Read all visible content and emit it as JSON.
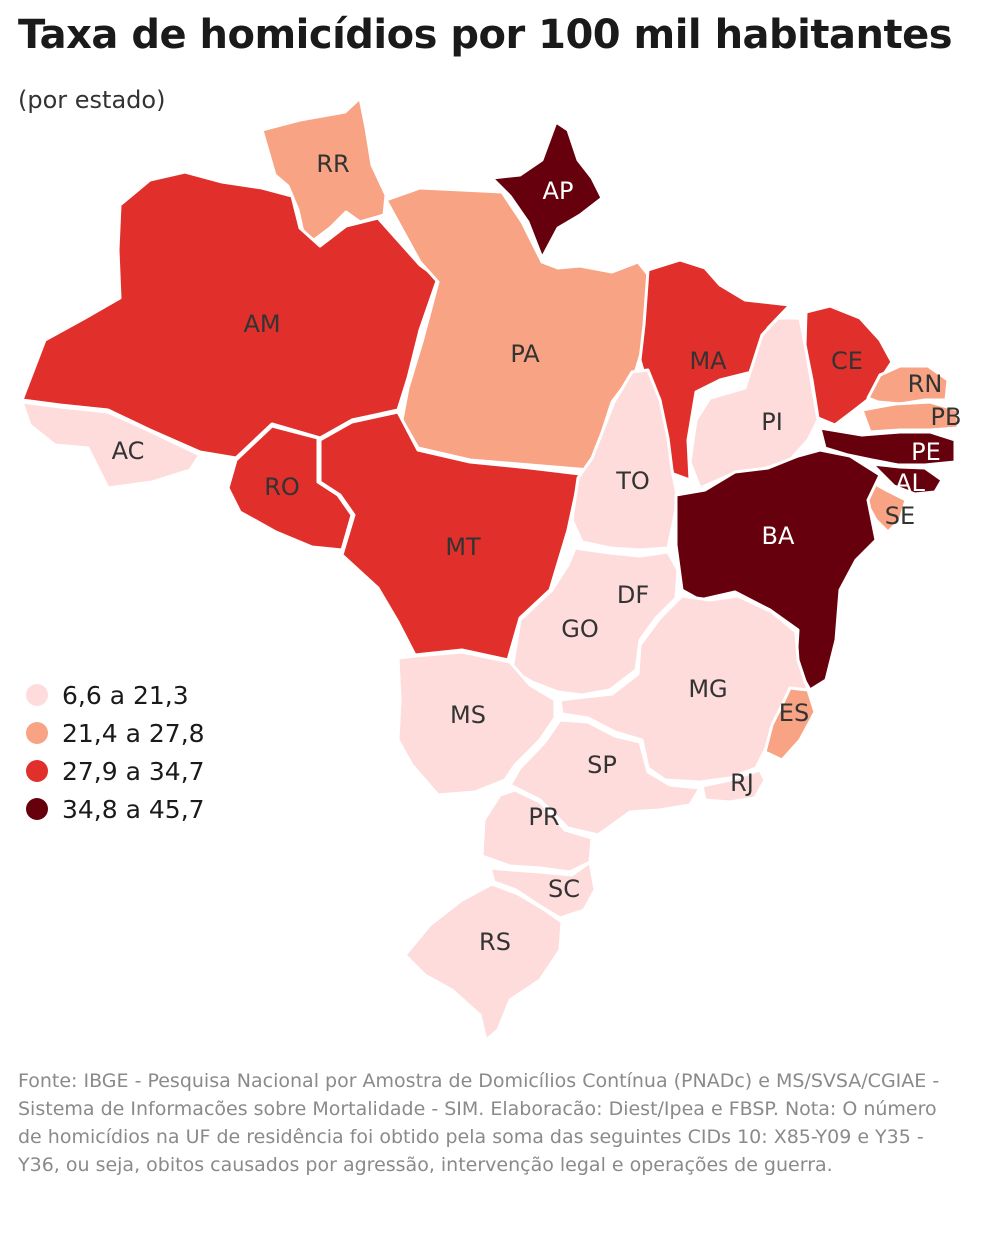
{
  "title": "Taxa de homicídios por 100 mil habitantes",
  "subtitle": "(por estado)",
  "legend": [
    {
      "label": "6,6 a 21,3",
      "color": "#fddcdb"
    },
    {
      "label": "21,4 a 27,8",
      "color": "#f7a384"
    },
    {
      "label": "27,9 a 34,7",
      "color": "#e1302b"
    },
    {
      "label": "34,8 a 45,7",
      "color": "#67000d"
    }
  ],
  "states": [
    {
      "code": "RR",
      "class": 1
    },
    {
      "code": "AP",
      "class": 3
    },
    {
      "code": "AM",
      "class": 2
    },
    {
      "code": "PA",
      "class": 1
    },
    {
      "code": "AC",
      "class": 0
    },
    {
      "code": "RO",
      "class": 2
    },
    {
      "code": "MT",
      "class": 2
    },
    {
      "code": "MA",
      "class": 2
    },
    {
      "code": "CE",
      "class": 2
    },
    {
      "code": "RN",
      "class": 1
    },
    {
      "code": "PB",
      "class": 1
    },
    {
      "code": "PE",
      "class": 3
    },
    {
      "code": "AL",
      "class": 3
    },
    {
      "code": "SE",
      "class": 1
    },
    {
      "code": "PI",
      "class": 0
    },
    {
      "code": "TO",
      "class": 0
    },
    {
      "code": "BA",
      "class": 3
    },
    {
      "code": "DF",
      "class": 0
    },
    {
      "code": "GO",
      "class": 0
    },
    {
      "code": "MG",
      "class": 0
    },
    {
      "code": "ES",
      "class": 1
    },
    {
      "code": "MS",
      "class": 0
    },
    {
      "code": "SP",
      "class": 0
    },
    {
      "code": "RJ",
      "class": 0
    },
    {
      "code": "PR",
      "class": 0
    },
    {
      "code": "SC",
      "class": 0
    },
    {
      "code": "RS",
      "class": 0
    }
  ],
  "source": "Fonte: IBGE - Pesquisa Nacional por Amostra de Domicílios Contínua (PNADc) e MS/SVSA/CGIAE - Sistema de Informacões sobre Mortalidade - SIM. Elaboracão: Diest/Ipea e FBSP. Nota: O número de homicídios na UF de residência foi obtido pela soma das seguintes CIDs 10: X85-Y09 e Y35 - Y36, ou seja, obitos causados por agressão, intervenção legal e operações de guerra."
}
